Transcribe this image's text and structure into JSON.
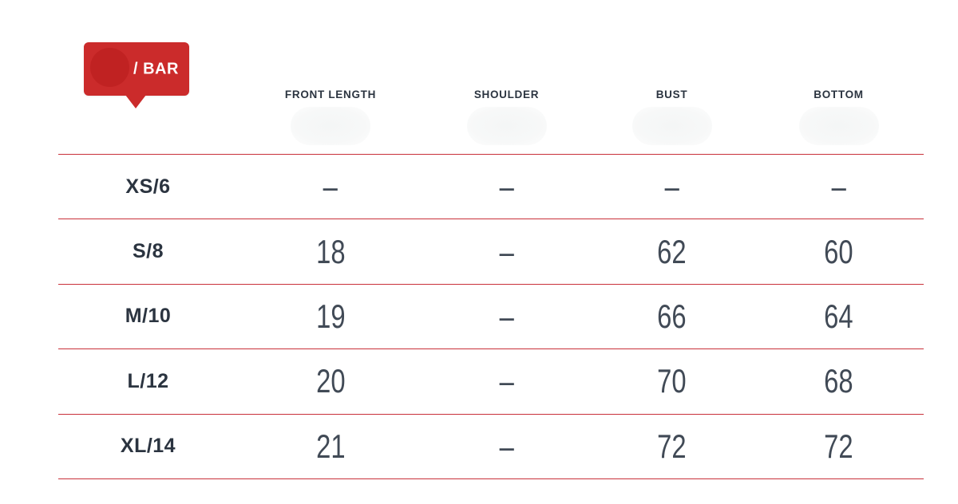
{
  "badge": {
    "label": "/ BAR",
    "bg_color": "#cb2b2b",
    "circle_color": "#c02222",
    "text_color": "#ffffff"
  },
  "table": {
    "rule_color": "#c9313a",
    "header_text_color": "#2b3440",
    "value_text_color": "#414a56",
    "columns": [
      "FRONT LENGTH",
      "SHOULDER",
      "BUST",
      "BOTTOM"
    ],
    "rows": [
      {
        "size": "XS/6",
        "values": [
          "–",
          "–",
          "–",
          "–"
        ]
      },
      {
        "size": "S/8",
        "values": [
          "18",
          "–",
          "62",
          "60"
        ]
      },
      {
        "size": "M/10",
        "values": [
          "19",
          "–",
          "66",
          "64"
        ]
      },
      {
        "size": "L/12",
        "values": [
          "20",
          "–",
          "70",
          "68"
        ]
      },
      {
        "size": "XL/14",
        "values": [
          "21",
          "–",
          "72",
          "72"
        ]
      }
    ]
  }
}
